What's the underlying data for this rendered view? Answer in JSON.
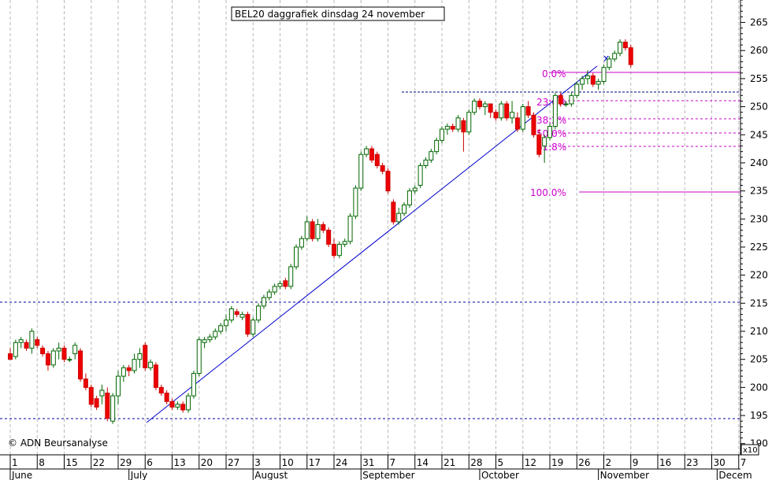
{
  "chart_data": {
    "type": "candlestick",
    "title": "BEL20 daggrafiek dinsdag 24 november",
    "copyright": "© ADN Beursanalyse",
    "scale_label": "x10",
    "ylim": [
      188,
      269
    ],
    "y_ticks": [
      190,
      195,
      200,
      205,
      210,
      215,
      220,
      225,
      230,
      235,
      240,
      245,
      250,
      255,
      260,
      265
    ],
    "x_ticks": [
      {
        "label": "1",
        "i": 0
      },
      {
        "label": "8",
        "i": 5
      },
      {
        "label": "15",
        "i": 10
      },
      {
        "label": "22",
        "i": 15
      },
      {
        "label": "29",
        "i": 20
      },
      {
        "label": "6",
        "i": 25
      },
      {
        "label": "13",
        "i": 30
      },
      {
        "label": "20",
        "i": 35
      },
      {
        "label": "27",
        "i": 40
      },
      {
        "label": "3",
        "i": 45
      },
      {
        "label": "10",
        "i": 50
      },
      {
        "label": "17",
        "i": 55
      },
      {
        "label": "24",
        "i": 60
      },
      {
        "label": "31",
        "i": 65
      },
      {
        "label": "7",
        "i": 70
      },
      {
        "label": "14",
        "i": 75
      },
      {
        "label": "21",
        "i": 80
      },
      {
        "label": "28",
        "i": 85
      },
      {
        "label": "5",
        "i": 90
      },
      {
        "label": "12",
        "i": 95
      },
      {
        "label": "19",
        "i": 100
      },
      {
        "label": "26",
        "i": 105
      },
      {
        "label": "2",
        "i": 110
      },
      {
        "label": "9",
        "i": 115
      },
      {
        "label": "16",
        "i": 120
      },
      {
        "label": "23",
        "i": 125
      },
      {
        "label": "30",
        "i": 130
      },
      {
        "label": "7",
        "i": 135
      }
    ],
    "months": [
      {
        "label": "June",
        "i": 0
      },
      {
        "label": "July",
        "i": 22
      },
      {
        "label": "August",
        "i": 45
      },
      {
        "label": "September",
        "i": 65
      },
      {
        "label": "October",
        "i": 87
      },
      {
        "label": "November",
        "i": 109
      },
      {
        "label": "Decem",
        "i": 131
      }
    ],
    "candles": [
      [
        206.0,
        207.0,
        205.5,
        205.0
      ],
      [
        205.5,
        208.5,
        205.0,
        208.0
      ],
      [
        208.0,
        209.0,
        207.0,
        208.5
      ],
      [
        208.0,
        208.5,
        206.5,
        207.0
      ],
      [
        207.0,
        210.5,
        206.0,
        210.0
      ],
      [
        208.5,
        209.0,
        207.0,
        207.5
      ],
      [
        207.0,
        207.5,
        205.5,
        206.0
      ],
      [
        206.0,
        206.5,
        203.0,
        204.0
      ],
      [
        204.0,
        207.0,
        203.5,
        206.5
      ],
      [
        206.5,
        208.0,
        205.0,
        207.0
      ],
      [
        207.0,
        207.5,
        204.5,
        205.0
      ],
      [
        205.0,
        205.5,
        204.5,
        205.0
      ],
      [
        206.0,
        208.0,
        205.0,
        207.5
      ],
      [
        206.5,
        207.0,
        201.0,
        201.5
      ],
      [
        201.5,
        202.5,
        199.5,
        200.0
      ],
      [
        200.0,
        200.5,
        196.5,
        197.0
      ],
      [
        198.0,
        198.5,
        196.0,
        196.5
      ],
      [
        198.5,
        200.5,
        197.0,
        199.5
      ],
      [
        199.0,
        200.0,
        194.0,
        194.5
      ],
      [
        194.0,
        199.0,
        193.5,
        198.5
      ],
      [
        198.5,
        203.0,
        197.0,
        202.0
      ],
      [
        202.0,
        204.0,
        201.0,
        203.5
      ],
      [
        203.5,
        204.0,
        202.0,
        203.0
      ],
      [
        203.0,
        206.0,
        202.5,
        205.0
      ],
      [
        205.0,
        207.0,
        203.5,
        206.0
      ],
      [
        207.5,
        208.0,
        203.0,
        203.5
      ],
      [
        203.5,
        205.0,
        203.0,
        204.5
      ],
      [
        204.0,
        204.5,
        199.5,
        200.0
      ],
      [
        200.0,
        200.5,
        198.5,
        199.0
      ],
      [
        199.0,
        199.5,
        197.0,
        197.5
      ],
      [
        197.5,
        198.0,
        196.0,
        196.5
      ],
      [
        196.5,
        197.5,
        196.0,
        197.0
      ],
      [
        197.0,
        197.5,
        195.5,
        196.0
      ],
      [
        196.0,
        199.0,
        195.5,
        198.5
      ],
      [
        198.5,
        203.0,
        198.0,
        202.5
      ],
      [
        202.5,
        209.0,
        202.0,
        208.5
      ],
      [
        208.0,
        209.0,
        207.0,
        208.5
      ],
      [
        208.5,
        209.5,
        208.0,
        209.0
      ],
      [
        209.0,
        210.5,
        208.5,
        210.0
      ],
      [
        210.0,
        211.5,
        209.5,
        211.0
      ],
      [
        211.0,
        213.0,
        210.0,
        212.0
      ],
      [
        212.0,
        214.5,
        211.5,
        214.0
      ],
      [
        213.5,
        214.0,
        212.5,
        213.0
      ],
      [
        212.5,
        213.5,
        212.0,
        213.0
      ],
      [
        213.0,
        213.5,
        209.0,
        209.5
      ],
      [
        209.5,
        212.5,
        209.0,
        212.0
      ],
      [
        212.0,
        215.0,
        211.5,
        214.5
      ],
      [
        214.5,
        216.5,
        214.0,
        216.0
      ],
      [
        216.0,
        217.5,
        215.5,
        217.0
      ],
      [
        217.0,
        218.5,
        216.5,
        218.0
      ],
      [
        218.0,
        219.0,
        217.5,
        218.5
      ],
      [
        219.0,
        219.5,
        217.5,
        218.0
      ],
      [
        218.0,
        222.0,
        217.5,
        221.5
      ],
      [
        221.5,
        225.5,
        221.0,
        225.0
      ],
      [
        225.0,
        227.0,
        224.5,
        226.5
      ],
      [
        226.5,
        230.5,
        226.0,
        229.5
      ],
      [
        229.5,
        230.0,
        226.0,
        226.5
      ],
      [
        226.5,
        230.0,
        226.0,
        229.0
      ],
      [
        229.0,
        229.5,
        227.5,
        228.0
      ],
      [
        228.0,
        228.5,
        225.0,
        225.5
      ],
      [
        225.5,
        226.5,
        223.0,
        223.5
      ],
      [
        223.5,
        226.0,
        223.0,
        225.5
      ],
      [
        225.5,
        226.5,
        225.0,
        226.0
      ],
      [
        226.0,
        231.0,
        225.5,
        230.5
      ],
      [
        230.5,
        236.0,
        230.0,
        235.5
      ],
      [
        235.5,
        242.0,
        235.0,
        241.5
      ],
      [
        241.5,
        243.0,
        241.0,
        242.5
      ],
      [
        242.5,
        243.0,
        240.0,
        240.5
      ],
      [
        241.5,
        242.0,
        239.0,
        239.5
      ],
      [
        239.5,
        240.0,
        238.0,
        238.5
      ],
      [
        238.5,
        239.0,
        234.5,
        235.0
      ],
      [
        233.0,
        233.5,
        229.0,
        229.5
      ],
      [
        229.5,
        232.0,
        229.0,
        231.0
      ],
      [
        231.0,
        233.0,
        230.5,
        232.5
      ],
      [
        232.5,
        235.5,
        232.0,
        235.0
      ],
      [
        235.0,
        236.0,
        234.5,
        235.5
      ],
      [
        236.0,
        240.0,
        235.5,
        239.5
      ],
      [
        239.5,
        241.0,
        239.0,
        240.5
      ],
      [
        240.5,
        242.5,
        240.0,
        242.0
      ],
      [
        242.0,
        244.5,
        241.5,
        244.0
      ],
      [
        244.0,
        246.5,
        243.5,
        246.0
      ],
      [
        246.0,
        247.0,
        245.0,
        246.5
      ],
      [
        246.5,
        247.0,
        245.5,
        246.0
      ],
      [
        246.0,
        248.5,
        245.5,
        248.0
      ],
      [
        247.5,
        248.0,
        242.0,
        245.5
      ],
      [
        245.5,
        249.5,
        245.0,
        249.0
      ],
      [
        249.0,
        251.5,
        248.5,
        251.0
      ],
      [
        251.0,
        251.5,
        249.5,
        250.0
      ],
      [
        250.0,
        251.0,
        248.5,
        250.5
      ],
      [
        250.5,
        250.5,
        248.0,
        249.0
      ],
      [
        249.0,
        249.5,
        247.5,
        248.0
      ],
      [
        248.0,
        251.0,
        247.5,
        250.5
      ],
      [
        250.5,
        251.0,
        247.5,
        248.0
      ],
      [
        248.0,
        251.0,
        247.0,
        249.0
      ],
      [
        248.0,
        249.0,
        245.5,
        246.0
      ],
      [
        246.0,
        250.5,
        245.5,
        250.0
      ],
      [
        250.0,
        251.0,
        248.0,
        248.5
      ],
      [
        248.5,
        249.0,
        244.5,
        245.0
      ],
      [
        245.0,
        246.0,
        241.0,
        241.5
      ],
      [
        243.0,
        245.0,
        240.0,
        244.5
      ],
      [
        244.5,
        247.0,
        244.0,
        246.5
      ],
      [
        246.5,
        252.5,
        246.0,
        252.0
      ],
      [
        252.0,
        252.5,
        250.0,
        250.5
      ],
      [
        250.5,
        251.0,
        250.0,
        250.5
      ],
      [
        250.5,
        252.5,
        250.0,
        252.0
      ],
      [
        252.0,
        254.5,
        251.5,
        254.0
      ],
      [
        254.0,
        255.5,
        253.0,
        255.0
      ],
      [
        255.0,
        256.5,
        254.0,
        255.5
      ],
      [
        255.5,
        256.0,
        253.5,
        254.0
      ],
      [
        254.0,
        255.0,
        253.0,
        254.5
      ],
      [
        254.5,
        257.5,
        254.0,
        257.0
      ],
      [
        257.0,
        259.0,
        256.5,
        258.5
      ],
      [
        258.5,
        260.0,
        258.0,
        259.5
      ],
      [
        259.5,
        262.0,
        259.0,
        261.5
      ],
      [
        261.5,
        262.0,
        260.0,
        260.5
      ],
      [
        260.5,
        261.0,
        257.0,
        257.5
      ]
    ]
  }
}
